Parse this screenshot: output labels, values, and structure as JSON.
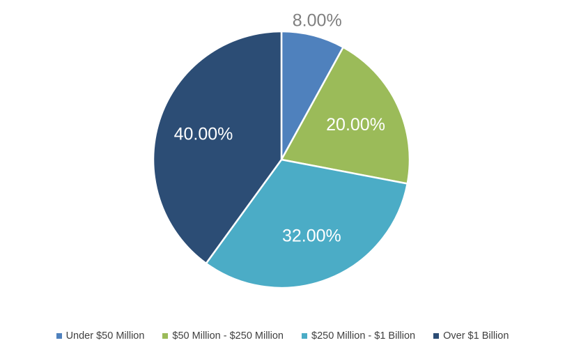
{
  "chart_data": {
    "type": "pie",
    "title": "",
    "categories": [
      "Under $50 Million",
      "$50 Million - $250 Million",
      "$250 Million - $1 Billion",
      "Over $1 Billion"
    ],
    "values": [
      8,
      20,
      32,
      40
    ],
    "data_labels": [
      "8.00%",
      "20.00%",
      "32.00%",
      "40.00%"
    ],
    "colors": [
      "#4f81bd",
      "#9bbb59",
      "#4bacc6",
      "#2c4d75"
    ],
    "label_colors": [
      "#7f7f7f",
      "#ffffff",
      "#ffffff",
      "#ffffff"
    ],
    "start_angle": "12 o'clock",
    "direction": "clockwise",
    "legend_position": "bottom"
  },
  "legend": {
    "items": [
      {
        "label": "Under $50 Million",
        "color": "#4f81bd"
      },
      {
        "label": "$50 Million - $250 Million",
        "color": "#9bbb59"
      },
      {
        "label": "$250 Million - $1 Billion",
        "color": "#4bacc6"
      },
      {
        "label": "Over $1 Billion",
        "color": "#2c4d75"
      }
    ]
  }
}
